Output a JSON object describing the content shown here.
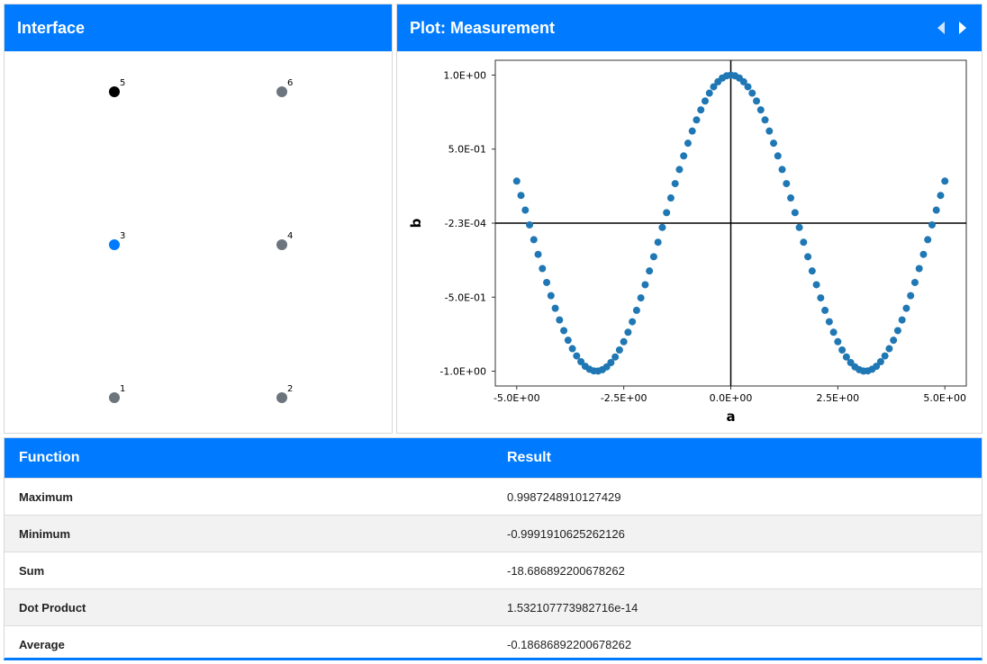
{
  "interface": {
    "title": "Interface",
    "nodes": [
      {
        "label": "5",
        "color": "#000000"
      },
      {
        "label": "6",
        "color": "#6c757d"
      },
      {
        "label": "3",
        "color": "#007bff"
      },
      {
        "label": "4",
        "color": "#6c757d"
      },
      {
        "label": "1",
        "color": "#6c757d"
      },
      {
        "label": "2",
        "color": "#6c757d"
      }
    ]
  },
  "plot": {
    "title": "Plot: Measurement",
    "nav": {
      "prev_icon": "triangle-left-icon",
      "next_icon": "triangle-right-icon"
    }
  },
  "chart_data": {
    "type": "scatter",
    "title": "",
    "xlabel": "a",
    "ylabel": "b",
    "xlim": [
      -5.5,
      5.5
    ],
    "ylim": [
      -1.1,
      1.1
    ],
    "xticks": [
      -5.0,
      -2.5,
      0.0,
      2.5,
      5.0
    ],
    "xtick_labels": [
      "-5.0E+00",
      "-2.5E+00",
      "0.0E+00",
      "2.5E+00",
      "5.0E+00"
    ],
    "yticks": [
      1.0,
      0.5,
      -0.00023,
      -0.5,
      -1.0
    ],
    "ytick_labels": [
      "1.0E+00",
      "5.0E-01",
      "-2.3E-04",
      "-5.0E-01",
      "-1.0E+00"
    ],
    "crosshair": {
      "x": 0.0,
      "y": -0.00023
    },
    "series": [
      {
        "color": "#1f77b4",
        "x": [
          -5.0,
          -4.9,
          -4.8,
          -4.7,
          -4.6,
          -4.5,
          -4.4,
          -4.3,
          -4.2,
          -4.1,
          -4.0,
          -3.9,
          -3.8,
          -3.7,
          -3.6,
          -3.5,
          -3.4,
          -3.3,
          -3.2,
          -3.1,
          -3.0,
          -2.9,
          -2.8,
          -2.7,
          -2.6,
          -2.5,
          -2.4,
          -2.3,
          -2.2,
          -2.1,
          -2.0,
          -1.9,
          -1.8,
          -1.7,
          -1.6,
          -1.5,
          -1.4,
          -1.3,
          -1.2,
          -1.1,
          -1.0,
          -0.9,
          -0.8,
          -0.7,
          -0.6,
          -0.5,
          -0.4,
          -0.3,
          -0.2,
          -0.1,
          0.0,
          0.1,
          0.2,
          0.3,
          0.4,
          0.5,
          0.6,
          0.7,
          0.8,
          0.9,
          1.0,
          1.1,
          1.2,
          1.3,
          1.4,
          1.5,
          1.6,
          1.7,
          1.8,
          1.9,
          2.0,
          2.1,
          2.2,
          2.3,
          2.4,
          2.5,
          2.6,
          2.7,
          2.8,
          2.9,
          3.0,
          3.1,
          3.2,
          3.3,
          3.4,
          3.5,
          3.6,
          3.7,
          3.8,
          3.9,
          4.0,
          4.1,
          4.2,
          4.3,
          4.4,
          4.5,
          4.6,
          4.7,
          4.8,
          4.9,
          5.0
        ],
        "y": [
          0.284,
          0.187,
          0.088,
          -0.012,
          -0.112,
          -0.211,
          -0.307,
          -0.401,
          -0.49,
          -0.575,
          -0.654,
          -0.726,
          -0.791,
          -0.848,
          -0.897,
          -0.936,
          -0.967,
          -0.987,
          -0.998,
          -0.999,
          -0.99,
          -0.971,
          -0.942,
          -0.904,
          -0.857,
          -0.801,
          -0.737,
          -0.666,
          -0.589,
          -0.505,
          -0.416,
          -0.323,
          -0.227,
          -0.129,
          -0.029,
          0.071,
          0.17,
          0.267,
          0.362,
          0.454,
          0.54,
          0.622,
          0.697,
          0.765,
          0.825,
          0.878,
          0.921,
          0.955,
          0.98,
          0.995,
          1.0,
          0.995,
          0.98,
          0.955,
          0.921,
          0.878,
          0.825,
          0.765,
          0.697,
          0.622,
          0.54,
          0.454,
          0.362,
          0.267,
          0.17,
          0.071,
          -0.029,
          -0.129,
          -0.227,
          -0.323,
          -0.416,
          -0.505,
          -0.589,
          -0.666,
          -0.737,
          -0.801,
          -0.857,
          -0.904,
          -0.942,
          -0.971,
          -0.99,
          -0.999,
          -0.998,
          -0.987,
          -0.967,
          -0.936,
          -0.897,
          -0.848,
          -0.791,
          -0.726,
          -0.654,
          -0.575,
          -0.49,
          -0.401,
          -0.307,
          -0.211,
          -0.112,
          -0.012,
          0.088,
          0.187,
          0.284
        ]
      }
    ],
    "grid": false
  },
  "table": {
    "headers": {
      "function": "Function",
      "result": "Result"
    },
    "rows": [
      {
        "function": "Maximum",
        "result": "0.9987248910127429"
      },
      {
        "function": "Minimum",
        "result": "-0.9991910625262126"
      },
      {
        "function": "Sum",
        "result": "-18.686892200678262"
      },
      {
        "function": "Dot Product",
        "result": "1.532107773982716e-14"
      },
      {
        "function": "Average",
        "result": "-0.18686892200678262"
      }
    ]
  }
}
